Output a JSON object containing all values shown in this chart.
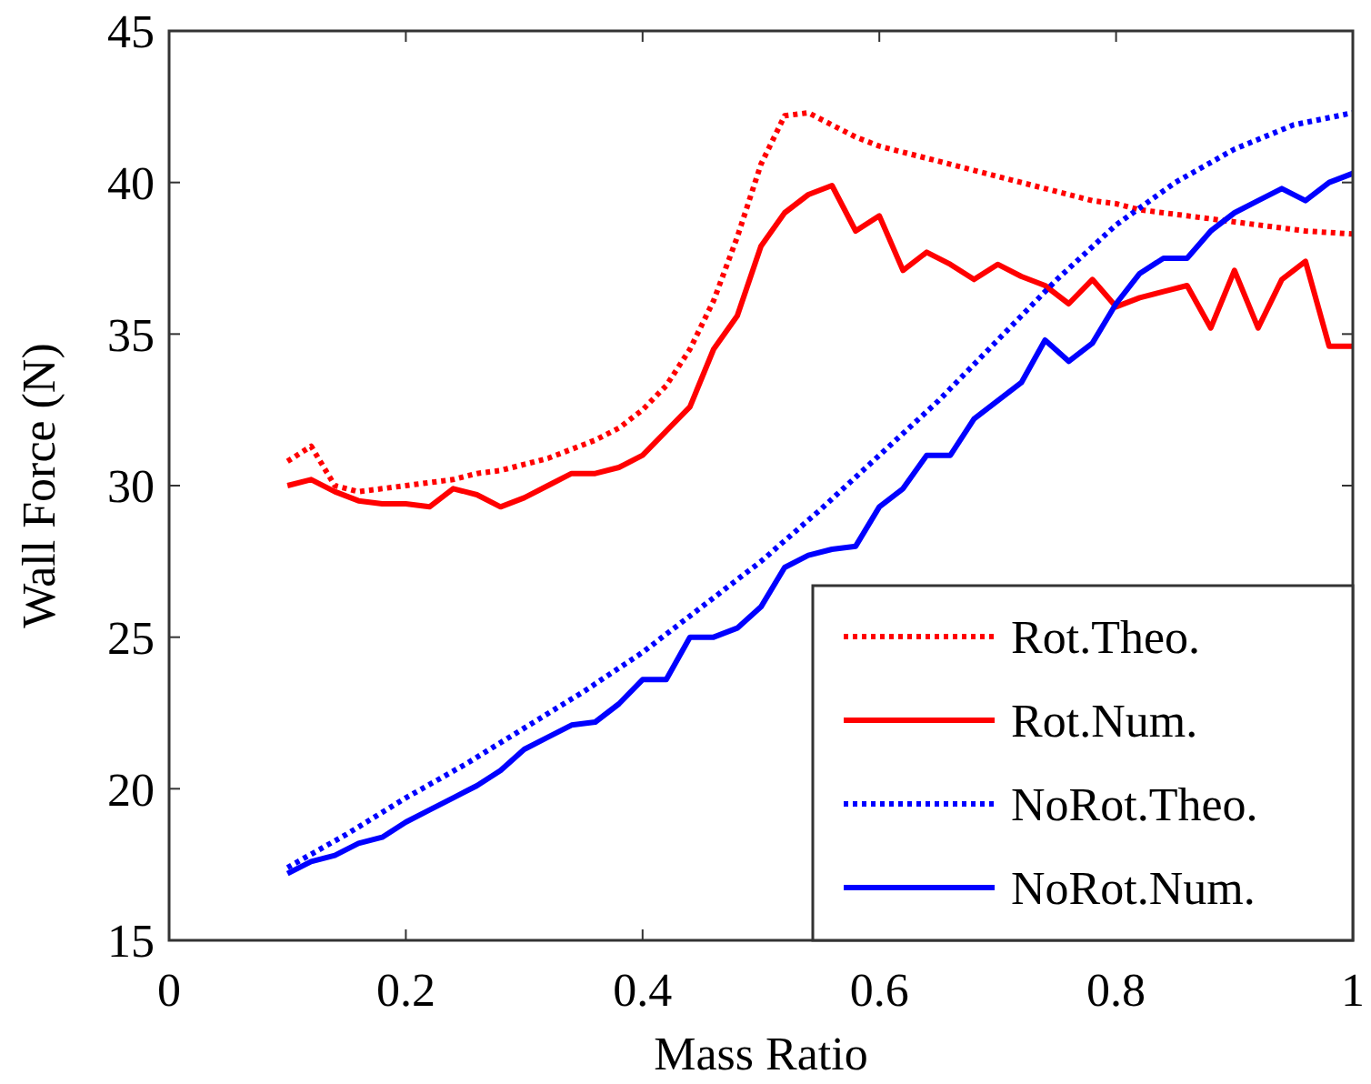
{
  "chart_data": {
    "type": "line",
    "xlabel": "Mass Ratio",
    "ylabel": "Wall Force (N)",
    "xlim": [
      0,
      1
    ],
    "ylim": [
      15,
      45
    ],
    "xticks": [
      0,
      0.2,
      0.4,
      0.6,
      0.8,
      1
    ],
    "yticks": [
      15,
      20,
      25,
      30,
      35,
      40,
      45
    ],
    "grid": false,
    "legend": "bottom right",
    "marker": "none",
    "series": [
      {
        "name": "Rot.Theo.",
        "color": "#ff0000",
        "line_style": "dotted",
        "x": [
          0.1,
          0.12,
          0.14,
          0.16,
          0.18,
          0.2,
          0.22,
          0.24,
          0.26,
          0.28,
          0.3,
          0.32,
          0.34,
          0.36,
          0.38,
          0.4,
          0.42,
          0.44,
          0.46,
          0.48,
          0.5,
          0.52,
          0.54,
          0.56,
          0.58,
          0.6,
          0.62,
          0.64,
          0.66,
          0.68,
          0.7,
          0.72,
          0.74,
          0.76,
          0.78,
          0.8,
          0.82,
          0.84,
          0.86,
          0.88,
          0.9,
          0.92,
          0.94,
          0.96,
          0.98,
          1.0
        ],
        "values": [
          30.8,
          31.3,
          30.0,
          29.8,
          29.9,
          30.0,
          30.1,
          30.2,
          30.4,
          30.5,
          30.7,
          30.9,
          31.2,
          31.5,
          31.9,
          32.5,
          33.3,
          34.5,
          36.1,
          38.2,
          40.6,
          42.2,
          42.3,
          41.9,
          41.5,
          41.2,
          41.0,
          40.8,
          40.6,
          40.4,
          40.2,
          40.0,
          39.8,
          39.6,
          39.4,
          39.3,
          39.1,
          39.0,
          38.9,
          38.8,
          38.7,
          38.6,
          38.5,
          38.4,
          38.35,
          38.3
        ]
      },
      {
        "name": "Rot.Num.",
        "color": "#ff0000",
        "line_style": "solid",
        "x": [
          0.1,
          0.12,
          0.14,
          0.16,
          0.18,
          0.2,
          0.22,
          0.24,
          0.26,
          0.28,
          0.3,
          0.32,
          0.34,
          0.36,
          0.38,
          0.4,
          0.42,
          0.44,
          0.46,
          0.48,
          0.5,
          0.52,
          0.54,
          0.56,
          0.58,
          0.6,
          0.62,
          0.64,
          0.66,
          0.68,
          0.7,
          0.72,
          0.74,
          0.76,
          0.78,
          0.8,
          0.82,
          0.84,
          0.86,
          0.88,
          0.9,
          0.92,
          0.94,
          0.96,
          0.98,
          1.0
        ],
        "values": [
          30.0,
          30.2,
          29.8,
          29.5,
          29.4,
          29.4,
          29.3,
          29.9,
          29.7,
          29.3,
          29.6,
          30.0,
          30.4,
          30.4,
          30.6,
          31.0,
          31.8,
          32.6,
          34.5,
          35.6,
          37.9,
          39.0,
          39.6,
          39.9,
          38.4,
          38.9,
          37.1,
          37.7,
          37.3,
          36.8,
          37.3,
          36.9,
          36.6,
          36.0,
          36.8,
          35.9,
          36.2,
          36.4,
          36.6,
          35.2,
          37.1,
          35.2,
          36.8,
          37.4,
          34.6,
          34.6
        ]
      },
      {
        "name": "NoRot.Theo.",
        "color": "#0000ff",
        "line_style": "dotted",
        "x": [
          0.1,
          0.15,
          0.2,
          0.25,
          0.3,
          0.35,
          0.4,
          0.45,
          0.5,
          0.55,
          0.6,
          0.65,
          0.7,
          0.75,
          0.8,
          0.85,
          0.9,
          0.95,
          1.0
        ],
        "values": [
          17.4,
          18.5,
          19.7,
          20.8,
          22.0,
          23.2,
          24.5,
          26.0,
          27.5,
          29.2,
          31.0,
          32.8,
          34.8,
          36.8,
          38.6,
          40.0,
          41.1,
          41.9,
          42.3
        ]
      },
      {
        "name": "NoRot.Num.",
        "color": "#0000ff",
        "line_style": "solid",
        "x": [
          0.1,
          0.12,
          0.14,
          0.16,
          0.18,
          0.2,
          0.22,
          0.24,
          0.26,
          0.28,
          0.3,
          0.32,
          0.34,
          0.36,
          0.38,
          0.4,
          0.42,
          0.44,
          0.46,
          0.48,
          0.5,
          0.52,
          0.54,
          0.56,
          0.58,
          0.6,
          0.62,
          0.64,
          0.66,
          0.68,
          0.7,
          0.72,
          0.74,
          0.76,
          0.78,
          0.8,
          0.82,
          0.84,
          0.86,
          0.88,
          0.9,
          0.92,
          0.94,
          0.96,
          0.98,
          1.0
        ],
        "values": [
          17.2,
          17.6,
          17.8,
          18.2,
          18.4,
          18.9,
          19.3,
          19.7,
          20.1,
          20.6,
          21.3,
          21.7,
          22.1,
          22.2,
          22.8,
          23.6,
          23.6,
          25.0,
          25.0,
          25.3,
          26.0,
          27.3,
          27.7,
          27.9,
          28.0,
          29.3,
          29.9,
          31.0,
          31.0,
          32.2,
          32.8,
          33.4,
          34.8,
          34.1,
          34.7,
          36.0,
          37.0,
          37.5,
          37.5,
          38.4,
          39.0,
          39.4,
          39.8,
          39.4,
          40.0,
          40.3
        ]
      }
    ]
  }
}
